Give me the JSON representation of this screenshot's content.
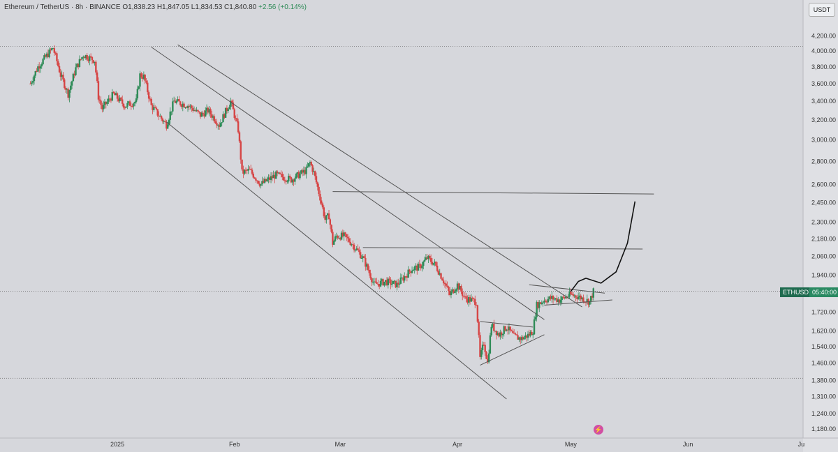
{
  "header": {
    "symbol": "Ethereum / TetherUS · 8h · BINANCE",
    "open": "O1,838.23",
    "high": "H1,847.05",
    "low": "L1,834.53",
    "close": "C1,840.80",
    "change": "+2.56 (+0.14%)"
  },
  "unit_button": "USDT",
  "price_tag": {
    "symbol": "ETHUSDT",
    "countdown": "05:40:00"
  },
  "colors": {
    "background": "#d6d7dc",
    "bull": "#2e8b57",
    "bear": "#d64545",
    "line": "#555555",
    "projection": "#111111"
  },
  "icons": {
    "bolt": "lightning-icon"
  },
  "chart_data": {
    "type": "candlestick",
    "title": "",
    "y_scale": "log",
    "ylim": [
      1180,
      4300
    ],
    "current_price": 1840.8,
    "y_ticks": [
      "4,200.00",
      "4,000.00",
      "3,800.00",
      "3,600.00",
      "3,400.00",
      "3,200.00",
      "3,000.00",
      "2,800.00",
      "2,600.00",
      "2,450.00",
      "2,300.00",
      "2,180.00",
      "2,060.00",
      "1,940.00",
      "1,720.00",
      "1,620.00",
      "1,540.00",
      "1,460.00",
      "1,380.00",
      "1,310.00",
      "1,240.00",
      "1,180.00"
    ],
    "x_ticks": [
      {
        "label": "2025",
        "date": "2025-01-01"
      },
      {
        "label": "Feb",
        "date": "2025-02-01"
      },
      {
        "label": "Mar",
        "date": "2025-03-01"
      },
      {
        "label": "Apr",
        "date": "2025-04-01"
      },
      {
        "label": "May",
        "date": "2025-05-01"
      },
      {
        "label": "Jun",
        "date": "2025-06-01"
      },
      {
        "label": "Ju",
        "date": "2025-07-01"
      }
    ],
    "price_path": [
      {
        "date": "2024-12-09",
        "price": 3600
      },
      {
        "date": "2024-12-11",
        "price": 3800
      },
      {
        "date": "2024-12-15",
        "price": 4040
      },
      {
        "date": "2024-12-17",
        "price": 3700
      },
      {
        "date": "2024-12-19",
        "price": 3480
      },
      {
        "date": "2024-12-21",
        "price": 3780
      },
      {
        "date": "2024-12-23",
        "price": 3950
      },
      {
        "date": "2024-12-26",
        "price": 3880
      },
      {
        "date": "2024-12-27",
        "price": 3450
      },
      {
        "date": "2024-12-28",
        "price": 3320
      },
      {
        "date": "2024-12-31",
        "price": 3480
      },
      {
        "date": "2025-01-03",
        "price": 3350
      },
      {
        "date": "2025-01-06",
        "price": 3400
      },
      {
        "date": "2025-01-07",
        "price": 3700
      },
      {
        "date": "2025-01-08",
        "price": 3680
      },
      {
        "date": "2025-01-10",
        "price": 3350
      },
      {
        "date": "2025-01-13",
        "price": 3200
      },
      {
        "date": "2025-01-14",
        "price": 3150
      },
      {
        "date": "2025-01-16",
        "price": 3400
      },
      {
        "date": "2025-01-20",
        "price": 3350
      },
      {
        "date": "2025-01-23",
        "price": 3250
      },
      {
        "date": "2025-01-25",
        "price": 3300
      },
      {
        "date": "2025-01-28",
        "price": 3150
      },
      {
        "date": "2025-01-31",
        "price": 3400
      },
      {
        "date": "2025-02-02",
        "price": 3100
      },
      {
        "date": "2025-02-03",
        "price": 2700
      },
      {
        "date": "2025-02-05",
        "price": 2720
      },
      {
        "date": "2025-02-08",
        "price": 2600
      },
      {
        "date": "2025-02-12",
        "price": 2680
      },
      {
        "date": "2025-02-16",
        "price": 2640
      },
      {
        "date": "2025-02-20",
        "price": 2720
      },
      {
        "date": "2025-02-21",
        "price": 2790
      },
      {
        "date": "2025-02-22",
        "price": 2700
      },
      {
        "date": "2025-02-24",
        "price": 2450
      },
      {
        "date": "2025-02-25",
        "price": 2320
      },
      {
        "date": "2025-02-26",
        "price": 2350
      },
      {
        "date": "2025-02-27",
        "price": 2150
      },
      {
        "date": "2025-02-28",
        "price": 2200
      },
      {
        "date": "2025-03-02",
        "price": 2200
      },
      {
        "date": "2025-03-04",
        "price": 2150
      },
      {
        "date": "2025-03-07",
        "price": 2050
      },
      {
        "date": "2025-03-10",
        "price": 1880
      },
      {
        "date": "2025-03-13",
        "price": 1900
      },
      {
        "date": "2025-03-16",
        "price": 1880
      },
      {
        "date": "2025-03-18",
        "price": 1930
      },
      {
        "date": "2025-03-20",
        "price": 1980
      },
      {
        "date": "2025-03-22",
        "price": 1990
      },
      {
        "date": "2025-03-24",
        "price": 2050
      },
      {
        "date": "2025-03-26",
        "price": 2010
      },
      {
        "date": "2025-03-28",
        "price": 1920
      },
      {
        "date": "2025-03-30",
        "price": 1820
      },
      {
        "date": "2025-04-01",
        "price": 1880
      },
      {
        "date": "2025-04-03",
        "price": 1800
      },
      {
        "date": "2025-04-06",
        "price": 1780
      },
      {
        "date": "2025-04-07",
        "price": 1480
      },
      {
        "date": "2025-04-08",
        "price": 1560
      },
      {
        "date": "2025-04-09",
        "price": 1460
      },
      {
        "date": "2025-04-10",
        "price": 1650
      },
      {
        "date": "2025-04-12",
        "price": 1600
      },
      {
        "date": "2025-04-14",
        "price": 1640
      },
      {
        "date": "2025-04-16",
        "price": 1590
      },
      {
        "date": "2025-04-18",
        "price": 1580
      },
      {
        "date": "2025-04-20",
        "price": 1600
      },
      {
        "date": "2025-04-21",
        "price": 1620
      },
      {
        "date": "2025-04-22",
        "price": 1760
      },
      {
        "date": "2025-04-24",
        "price": 1790
      },
      {
        "date": "2025-04-26",
        "price": 1800
      },
      {
        "date": "2025-04-28",
        "price": 1790
      },
      {
        "date": "2025-05-01",
        "price": 1820
      },
      {
        "date": "2025-05-03",
        "price": 1810
      },
      {
        "date": "2025-05-06",
        "price": 1780
      },
      {
        "date": "2025-05-07",
        "price": 1840
      }
    ],
    "trendlines": [
      {
        "name": "channel-upper",
        "from": {
          "date": "2025-01-10",
          "price": 4050
        },
        "to": {
          "date": "2025-04-24",
          "price": 1680
        }
      },
      {
        "name": "channel-lower",
        "from": {
          "date": "2025-01-14",
          "price": 3180
        },
        "to": {
          "date": "2025-04-14",
          "price": 1300
        }
      },
      {
        "name": "long-trendline",
        "from": {
          "date": "2025-01-17",
          "price": 4080
        },
        "to": {
          "date": "2025-05-04",
          "price": 1750
        }
      },
      {
        "name": "resistance-2520",
        "from": {
          "date": "2025-02-27",
          "price": 2540
        },
        "to": {
          "date": "2025-05-23",
          "price": 2520
        }
      },
      {
        "name": "resistance-2100",
        "from": {
          "date": "2025-03-07",
          "price": 2120
        },
        "to": {
          "date": "2025-05-20",
          "price": 2110
        }
      },
      {
        "name": "wedge-upper",
        "from": {
          "date": "2025-04-07",
          "price": 1670
        },
        "to": {
          "date": "2025-04-21",
          "price": 1640
        }
      },
      {
        "name": "wedge-lower",
        "from": {
          "date": "2025-04-07",
          "price": 1450
        },
        "to": {
          "date": "2025-04-24",
          "price": 1600
        }
      },
      {
        "name": "triangle-upper",
        "from": {
          "date": "2025-04-20",
          "price": 1880
        },
        "to": {
          "date": "2025-05-10",
          "price": 1830
        }
      },
      {
        "name": "triangle-lower",
        "from": {
          "date": "2025-04-24",
          "price": 1760
        },
        "to": {
          "date": "2025-05-12",
          "price": 1790
        }
      }
    ],
    "dotted_levels": [
      4060,
      1840.8,
      1390
    ],
    "projection": [
      {
        "date": "2025-05-01",
        "price": 1840
      },
      {
        "date": "2025-05-03",
        "price": 1900
      },
      {
        "date": "2025-05-05",
        "price": 1920
      },
      {
        "date": "2025-05-09",
        "price": 1890
      },
      {
        "date": "2025-05-13",
        "price": 1960
      },
      {
        "date": "2025-05-16",
        "price": 2150
      },
      {
        "date": "2025-05-18",
        "price": 2460
      }
    ]
  }
}
